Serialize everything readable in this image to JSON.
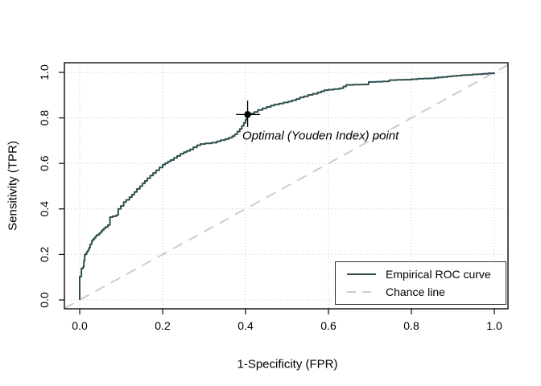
{
  "figure": {
    "background": "#ffffff"
  },
  "chart_data": {
    "type": "line",
    "subtype": "empirical-roc-step",
    "title": "",
    "xlabel": "1-Specificity (FPR)",
    "ylabel": "Sensitivity (TPR)",
    "xlim": [
      0.0,
      1.0
    ],
    "ylim": [
      0.0,
      1.0
    ],
    "x_ticks": {
      "values": [
        0.0,
        0.2,
        0.4,
        0.6,
        0.8,
        1.0
      ],
      "labels": [
        "0.0",
        "0.2",
        "0.4",
        "0.6",
        "0.8",
        "1.0"
      ]
    },
    "y_ticks": {
      "values": [
        0.0,
        0.2,
        0.4,
        0.6,
        0.8,
        1.0
      ],
      "labels": [
        "0.0",
        "0.2",
        "0.4",
        "0.6",
        "0.8",
        "1.0"
      ]
    },
    "grid": {
      "style": "dotted",
      "at_ticks": true
    },
    "legend_position": "bottom-right",
    "series": [
      {
        "name": "Empirical ROC curve",
        "line_style": "solid",
        "color": "#2F4F4F",
        "step": true,
        "points": [
          [
            0.0,
            0.0
          ],
          [
            0.0,
            0.103
          ],
          [
            0.004,
            0.11
          ],
          [
            0.004,
            0.138
          ],
          [
            0.008,
            0.145
          ],
          [
            0.01,
            0.173
          ],
          [
            0.012,
            0.2
          ],
          [
            0.016,
            0.207
          ],
          [
            0.018,
            0.214
          ],
          [
            0.021,
            0.222
          ],
          [
            0.023,
            0.23
          ],
          [
            0.025,
            0.244
          ],
          [
            0.029,
            0.258
          ],
          [
            0.031,
            0.265
          ],
          [
            0.035,
            0.272
          ],
          [
            0.038,
            0.279
          ],
          [
            0.041,
            0.286
          ],
          [
            0.047,
            0.293
          ],
          [
            0.051,
            0.3
          ],
          [
            0.054,
            0.307
          ],
          [
            0.058,
            0.314
          ],
          [
            0.062,
            0.321
          ],
          [
            0.068,
            0.329
          ],
          [
            0.073,
            0.364
          ],
          [
            0.08,
            0.368
          ],
          [
            0.088,
            0.372
          ],
          [
            0.091,
            0.375
          ],
          [
            0.093,
            0.4
          ],
          [
            0.099,
            0.413
          ],
          [
            0.106,
            0.43
          ],
          [
            0.112,
            0.44
          ],
          [
            0.12,
            0.452
          ],
          [
            0.126,
            0.463
          ],
          [
            0.132,
            0.475
          ],
          [
            0.138,
            0.488
          ],
          [
            0.145,
            0.5
          ],
          [
            0.151,
            0.512
          ],
          [
            0.157,
            0.523
          ],
          [
            0.163,
            0.535
          ],
          [
            0.17,
            0.547
          ],
          [
            0.177,
            0.558
          ],
          [
            0.184,
            0.57
          ],
          [
            0.192,
            0.582
          ],
          [
            0.2,
            0.594
          ],
          [
            0.206,
            0.601
          ],
          [
            0.213,
            0.608
          ],
          [
            0.219,
            0.615
          ],
          [
            0.227,
            0.624
          ],
          [
            0.235,
            0.633
          ],
          [
            0.243,
            0.642
          ],
          [
            0.251,
            0.649
          ],
          [
            0.258,
            0.655
          ],
          [
            0.266,
            0.662
          ],
          [
            0.274,
            0.671
          ],
          [
            0.283,
            0.68
          ],
          [
            0.291,
            0.685
          ],
          [
            0.303,
            0.688
          ],
          [
            0.318,
            0.691
          ],
          [
            0.331,
            0.697
          ],
          [
            0.34,
            0.702
          ],
          [
            0.351,
            0.707
          ],
          [
            0.36,
            0.713
          ],
          [
            0.368,
            0.72
          ],
          [
            0.374,
            0.728
          ],
          [
            0.38,
            0.74
          ],
          [
            0.386,
            0.752
          ],
          [
            0.391,
            0.765
          ],
          [
            0.396,
            0.778
          ],
          [
            0.4,
            0.792
          ],
          [
            0.403,
            0.805
          ],
          [
            0.405,
            0.815
          ],
          [
            0.413,
            0.819
          ],
          [
            0.421,
            0.826
          ],
          [
            0.43,
            0.835
          ],
          [
            0.441,
            0.842
          ],
          [
            0.451,
            0.848
          ],
          [
            0.461,
            0.854
          ],
          [
            0.47,
            0.859
          ],
          [
            0.481,
            0.863
          ],
          [
            0.492,
            0.868
          ],
          [
            0.503,
            0.872
          ],
          [
            0.512,
            0.877
          ],
          [
            0.522,
            0.883
          ],
          [
            0.531,
            0.89
          ],
          [
            0.541,
            0.895
          ],
          [
            0.551,
            0.901
          ],
          [
            0.562,
            0.906
          ],
          [
            0.574,
            0.912
          ],
          [
            0.583,
            0.917
          ],
          [
            0.59,
            0.922
          ],
          [
            0.6,
            0.924
          ],
          [
            0.613,
            0.927
          ],
          [
            0.627,
            0.93
          ],
          [
            0.636,
            0.938
          ],
          [
            0.643,
            0.945
          ],
          [
            0.66,
            0.946
          ],
          [
            0.68,
            0.947
          ],
          [
            0.695,
            0.948
          ],
          [
            0.697,
            0.958
          ],
          [
            0.715,
            0.959
          ],
          [
            0.73,
            0.96
          ],
          [
            0.745,
            0.961
          ],
          [
            0.747,
            0.966
          ],
          [
            0.765,
            0.967
          ],
          [
            0.782,
            0.968
          ],
          [
            0.8,
            0.97
          ],
          [
            0.815,
            0.972
          ],
          [
            0.83,
            0.973
          ],
          [
            0.845,
            0.974
          ],
          [
            0.856,
            0.976
          ],
          [
            0.865,
            0.978
          ],
          [
            0.875,
            0.98
          ],
          [
            0.887,
            0.982
          ],
          [
            0.898,
            0.984
          ],
          [
            0.91,
            0.986
          ],
          [
            0.922,
            0.988
          ],
          [
            0.935,
            0.989
          ],
          [
            0.948,
            0.991
          ],
          [
            0.96,
            0.992
          ],
          [
            0.972,
            0.994
          ],
          [
            0.985,
            0.996
          ],
          [
            1.0,
            1.0
          ]
        ]
      },
      {
        "name": "Chance line",
        "line_style": "dashed",
        "color": "#CCCCCC",
        "step": false,
        "points": [
          [
            0,
            0
          ],
          [
            1,
            1
          ]
        ]
      }
    ],
    "optimal_point": {
      "label": "Optimal (Youden Index) point",
      "fpr": 0.405,
      "tpr": 0.815,
      "fpr_ci": [
        0.377,
        0.435
      ],
      "tpr_ci": [
        0.76,
        0.876
      ],
      "marker": "filled-circle",
      "color": "#000000"
    }
  },
  "legend": {
    "items": [
      {
        "label": "Empirical ROC curve",
        "style": "solid"
      },
      {
        "label": "Chance line",
        "style": "dashed"
      }
    ]
  },
  "colors": {
    "curve": "#2F4F4F",
    "chance": "#CCCCCC",
    "grid": "#C6C6C6",
    "frame": "#1A1A1A",
    "tick": "#1A1A1A",
    "text": "#000000",
    "marker": "#000000",
    "legend_border": "#333333"
  }
}
